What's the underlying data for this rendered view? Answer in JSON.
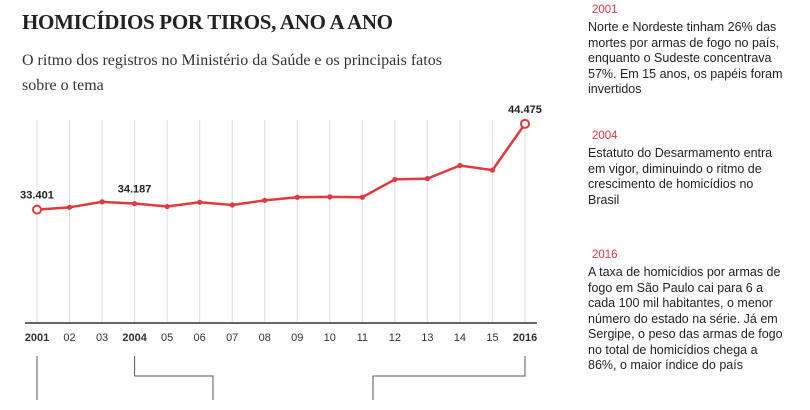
{
  "header": {
    "title": "HOMICÍDIOS POR TIROS, ANO A ANO",
    "subtitle": "O ritmo dos registros no Ministério da Saúde e os principais fatos sobre o tema"
  },
  "chart_data": {
    "type": "line",
    "title": "HOMICÍDIOS POR TIROS, ANO A ANO",
    "categories": [
      "2001",
      "02",
      "03",
      "2004",
      "05",
      "06",
      "07",
      "08",
      "09",
      "10",
      "11",
      "12",
      "13",
      "14",
      "15",
      "2016"
    ],
    "emphasized_categories": [
      "2001",
      "2004",
      "2016"
    ],
    "series": [
      {
        "values": [
          33401,
          33700,
          34400,
          34187,
          33800,
          34350,
          34000,
          34600,
          35000,
          35050,
          35000,
          37300,
          37400,
          39100,
          38500,
          44475
        ]
      }
    ],
    "data_labels": [
      {
        "index": 0,
        "text": "33.401"
      },
      {
        "index": 3,
        "text": "34.187"
      },
      {
        "index": 15,
        "text": "44.475"
      }
    ],
    "ylim": [
      30000,
      46000
    ],
    "grid": "vertical",
    "xlabel": "",
    "ylabel": "",
    "colors": {
      "line": "#e03a3e",
      "grid": "#dddddd",
      "axis": "#333333",
      "bracket": "#555555"
    }
  },
  "annotations": [
    {
      "year": "2001",
      "text": "Norte e Nordeste tinham 26% das mortes por armas de fogo no país, enquanto o Sudeste concentrava 57%. Em 15 anos, os papéis foram invertidos"
    },
    {
      "year": "2004",
      "text": "Estatuto do Desarmamento entra em vigor, diminuindo o ritmo de crescimento de homicídios no Brasil"
    },
    {
      "year": "2016",
      "text": "A taxa de homicídios por armas de fogo em São Paulo cai para 6 a cada 100 mil habitantes, o menor número do estado na série. Já em Sergipe, o peso das armas de fogo no total de homicídios chega a 86%, o maior índice do país"
    }
  ]
}
